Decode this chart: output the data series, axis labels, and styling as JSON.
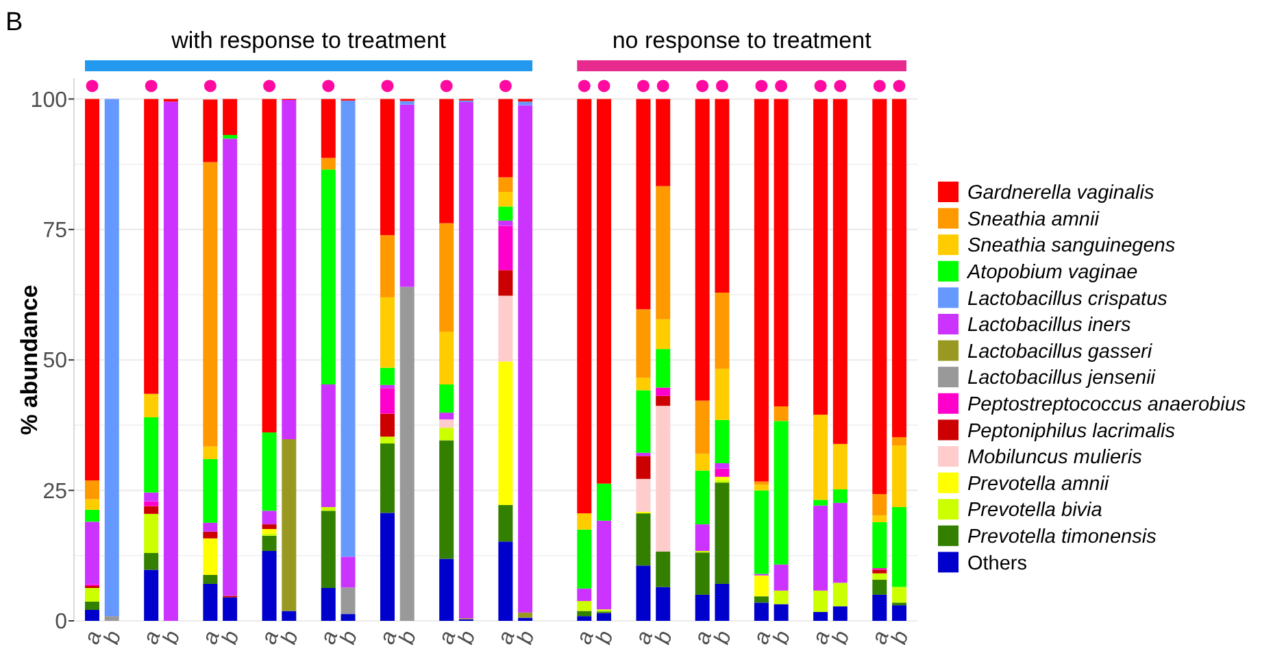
{
  "chart_data": {
    "type": "bar",
    "stacked": true,
    "ylabel": "% abundance",
    "annotations": [
      "B",
      "with response to treatment",
      "no response to treatment"
    ],
    "categories": [
      "a",
      "b",
      null,
      "a",
      "b",
      null,
      "a",
      "b",
      null,
      "a",
      "b",
      null,
      "a",
      "b",
      null,
      "a",
      "b",
      null,
      "a",
      "b",
      null,
      "a",
      "b",
      null,
      null,
      "a",
      "b",
      null,
      "a",
      "b",
      null,
      "a",
      "b",
      null,
      "a",
      "b",
      null,
      "a",
      "b",
      null,
      "a",
      "b"
    ],
    "ylim": [
      0,
      104
    ],
    "yticks": [
      0,
      {
        "value": 12.5,
        "label": null
      },
      25,
      {
        "value": 37.5,
        "label": null
      },
      50,
      {
        "value": 62.5,
        "label": null
      },
      75,
      {
        "value": 87.5,
        "label": null
      },
      100
    ],
    "grid": "y",
    "legend": "right",
    "series": [
      {
        "name": "Others",
        "color": "#0000cc",
        "values": [
          2.1,
          0,
          null,
          9.8,
          0,
          null,
          7.1,
          4.5,
          null,
          13.4,
          1.9,
          null,
          6.3,
          1.3,
          null,
          20.7,
          0,
          null,
          11.9,
          0.3,
          null,
          15.2,
          0.6,
          null,
          null,
          0.9,
          1.5,
          null,
          10.6,
          6.5,
          null,
          5.0,
          7.1,
          null,
          3.5,
          3.2,
          null,
          1.7,
          2.8,
          null,
          5.0,
          3.0
        ]
      },
      {
        "name": "Prevotella timonensis",
        "color": "#338000",
        "values": [
          1.6,
          0,
          null,
          3.2,
          0,
          null,
          1.7,
          0,
          null,
          2.9,
          0,
          null,
          14.8,
          0,
          null,
          13.3,
          0,
          null,
          22.7,
          0,
          null,
          7.0,
          0,
          null,
          null,
          1.0,
          0.3,
          null,
          10.0,
          6.8,
          null,
          8.1,
          19.4,
          null,
          1.2,
          0,
          null,
          0,
          0,
          null,
          2.9,
          0.5
        ]
      },
      {
        "name": "Prevotella bivia",
        "color": "#ccff00",
        "values": [
          2.6,
          0,
          null,
          7.5,
          0,
          null,
          0,
          0,
          null,
          0.4,
          0,
          null,
          0.7,
          0,
          null,
          1.3,
          0,
          null,
          2.4,
          0,
          null,
          0,
          0,
          null,
          null,
          1.9,
          0.4,
          null,
          0,
          0,
          null,
          0.3,
          0.5,
          null,
          0,
          2.6,
          null,
          4.1,
          4.5,
          null,
          1.2,
          3.0
        ]
      },
      {
        "name": "Prevotella amnii",
        "color": "#ffff00",
        "values": [
          0,
          0,
          null,
          0,
          0,
          null,
          7.0,
          0,
          null,
          0.9,
          0,
          null,
          0,
          0,
          null,
          0,
          0,
          null,
          0,
          0,
          null,
          27.5,
          0,
          null,
          null,
          0,
          0,
          null,
          0.3,
          0,
          null,
          0,
          0.6,
          null,
          4.0,
          0,
          null,
          0,
          0,
          null,
          0,
          0
        ]
      },
      {
        "name": "Mobiluncus mulieris",
        "color": "#ffcccc",
        "values": [
          0,
          0,
          null,
          0,
          0,
          null,
          0,
          0,
          null,
          0,
          0,
          null,
          0,
          0,
          null,
          0,
          0,
          null,
          1.6,
          0,
          null,
          12.6,
          0,
          null,
          null,
          0,
          0,
          null,
          6.3,
          27.9,
          null,
          0,
          0,
          null,
          0,
          0,
          null,
          0,
          0,
          null,
          0,
          0
        ]
      },
      {
        "name": "Peptoniphilus lacrimalis",
        "color": "#cc0000",
        "values": [
          0.4,
          0,
          null,
          1.5,
          0,
          null,
          1.3,
          0.3,
          null,
          0.9,
          0,
          null,
          0,
          0,
          null,
          4.4,
          0,
          null,
          0,
          0,
          null,
          4.9,
          0,
          null,
          null,
          0,
          0,
          null,
          4.4,
          1.9,
          null,
          0,
          0,
          null,
          0,
          0,
          null,
          0,
          0,
          null,
          0.7,
          0
        ]
      },
      {
        "name": "Peptostreptococcus anaerobius",
        "color": "#ff00cc",
        "values": [
          0.3,
          0,
          null,
          0.9,
          0,
          null,
          0,
          0,
          null,
          0,
          0,
          null,
          0,
          0,
          null,
          4.9,
          0,
          null,
          0,
          0,
          null,
          8.5,
          0,
          null,
          null,
          0,
          0,
          null,
          0,
          1.6,
          null,
          0,
          1.6,
          null,
          0,
          0,
          null,
          0,
          0,
          null,
          0.3,
          0
        ]
      },
      {
        "name": "Lactobacillus jensenii",
        "color": "#999999",
        "values": [
          0,
          0.9,
          null,
          0,
          0,
          null,
          0,
          0,
          null,
          0,
          0,
          null,
          0,
          5.1,
          null,
          0,
          64.0,
          null,
          0,
          0,
          null,
          0,
          0,
          null,
          null,
          0,
          0,
          null,
          0,
          0,
          null,
          0,
          0,
          null,
          0,
          0,
          null,
          0,
          0,
          null,
          0,
          0
        ]
      },
      {
        "name": "Lactobacillus gasseri",
        "color": "#999922",
        "values": [
          0,
          0,
          null,
          0,
          0,
          null,
          0,
          0,
          null,
          0,
          32.9,
          null,
          0,
          0,
          null,
          0,
          0,
          null,
          0,
          0.2,
          null,
          0,
          1.0,
          null,
          null,
          0,
          0,
          null,
          0,
          0,
          null,
          0,
          0,
          null,
          0,
          0,
          null,
          0,
          0,
          null,
          0,
          0
        ]
      },
      {
        "name": "Lactobacillus iners",
        "color": "#cc33ff",
        "values": [
          12.0,
          0,
          null,
          1.7,
          99.5,
          null,
          1.7,
          87.6,
          null,
          2.6,
          65.0,
          null,
          23.5,
          5.9,
          null,
          0.6,
          34.9,
          null,
          1.3,
          98.9,
          null,
          1.0,
          97.2,
          null,
          null,
          2.4,
          17.0,
          null,
          0.6,
          0,
          null,
          5.1,
          1.0,
          null,
          0.3,
          5.0,
          null,
          16.3,
          15.3,
          null,
          0,
          0
        ]
      },
      {
        "name": "Lactobacillus crispatus",
        "color": "#6699ff",
        "values": [
          0,
          99.1,
          null,
          0,
          0,
          null,
          0,
          0,
          null,
          0,
          0,
          null,
          0,
          87.4,
          null,
          0,
          0.7,
          null,
          0,
          0.3,
          null,
          0,
          0.7,
          null,
          null,
          0,
          0,
          null,
          0,
          0,
          null,
          0,
          0,
          null,
          0,
          0,
          null,
          0,
          0,
          null,
          0,
          0
        ]
      },
      {
        "name": "Atopobium vaginae",
        "color": "#00ff00",
        "values": [
          2.3,
          0,
          null,
          14.4,
          0,
          null,
          12.2,
          0.7,
          null,
          15.0,
          0,
          null,
          41.2,
          0,
          null,
          3.3,
          0,
          null,
          5.4,
          0,
          null,
          2.7,
          0,
          null,
          null,
          11.3,
          7.1,
          null,
          12.0,
          7.4,
          null,
          10.3,
          8.3,
          null,
          16.0,
          27.5,
          null,
          1.1,
          2.6,
          null,
          8.8,
          15.3
        ]
      },
      {
        "name": "Sneathia sanguinegens",
        "color": "#ffcc00",
        "values": [
          2.0,
          0,
          null,
          4.5,
          0,
          null,
          2.4,
          0,
          null,
          0,
          0,
          null,
          0,
          0,
          null,
          13.5,
          0,
          null,
          10.1,
          0,
          null,
          2.8,
          0,
          null,
          null,
          3.1,
          0,
          null,
          2.4,
          5.7,
          null,
          3.2,
          9.8,
          null,
          1.1,
          0,
          null,
          16.3,
          8.7,
          null,
          1.3,
          11.8
        ]
      },
      {
        "name": "Sneathia amnii",
        "color": "#ff9900",
        "values": [
          3.6,
          0,
          null,
          0,
          0,
          null,
          54.5,
          0,
          null,
          0,
          0,
          null,
          2.2,
          0,
          null,
          11.9,
          0,
          null,
          20.8,
          0,
          null,
          2.8,
          0,
          null,
          null,
          0,
          0,
          null,
          13.1,
          25.5,
          null,
          10.2,
          14.6,
          null,
          0.6,
          2.8,
          null,
          0,
          0,
          null,
          4.1,
          1.6
        ]
      },
      {
        "name": "Gardnerella vaginalis",
        "color": "#ff0000",
        "values": [
          73.1,
          0,
          null,
          56.5,
          0.5,
          null,
          12.0,
          6.9,
          null,
          63.9,
          0.2,
          null,
          11.3,
          0.3,
          null,
          26.1,
          0.4,
          null,
          23.8,
          0.3,
          null,
          15.0,
          0.5,
          null,
          null,
          79.4,
          73.7,
          null,
          40.3,
          16.7,
          null,
          57.8,
          37.1,
          null,
          73.3,
          58.9,
          null,
          60.5,
          66.1,
          null,
          75.7,
          64.8
        ]
      },
      {
        "type": "scatter",
        "color": "#ff0aa0",
        "marker": "circle",
        "values": [
          102.5,
          null,
          null,
          102.5,
          null,
          null,
          102.5,
          null,
          null,
          102.5,
          null,
          null,
          102.5,
          null,
          null,
          102.5,
          null,
          null,
          102.5,
          null,
          null,
          102.5,
          null,
          null,
          null,
          102.5,
          102.5,
          null,
          102.5,
          102.5,
          null,
          102.5,
          102.5,
          null,
          102.5,
          102.5,
          null,
          102.5,
          102.5,
          null,
          102.5,
          102.5
        ]
      }
    ]
  }
}
